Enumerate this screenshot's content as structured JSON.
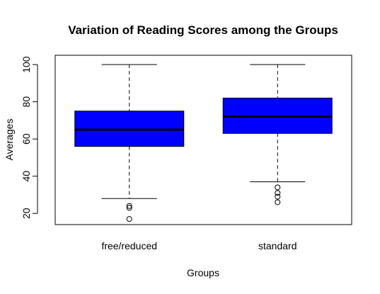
{
  "chart_data": {
    "type": "boxplot",
    "title": "Variation of Reading Scores among the Groups",
    "xlabel": "Groups",
    "ylabel": "Averages",
    "ylim": [
      14,
      105
    ],
    "yticks": [
      20,
      40,
      60,
      80,
      100
    ],
    "box_color": "#0000ff",
    "categories": [
      "free/reduced",
      "standard"
    ],
    "boxes": [
      {
        "label": "free/reduced",
        "whisker_low": 28,
        "q1": 56,
        "median": 65,
        "q3": 75,
        "whisker_high": 100,
        "outliers": [
          17,
          23,
          24
        ]
      },
      {
        "label": "standard",
        "whisker_low": 37,
        "q1": 63,
        "median": 72,
        "q3": 82,
        "whisker_high": 100,
        "outliers": [
          26,
          29,
          31,
          34
        ]
      }
    ]
  }
}
